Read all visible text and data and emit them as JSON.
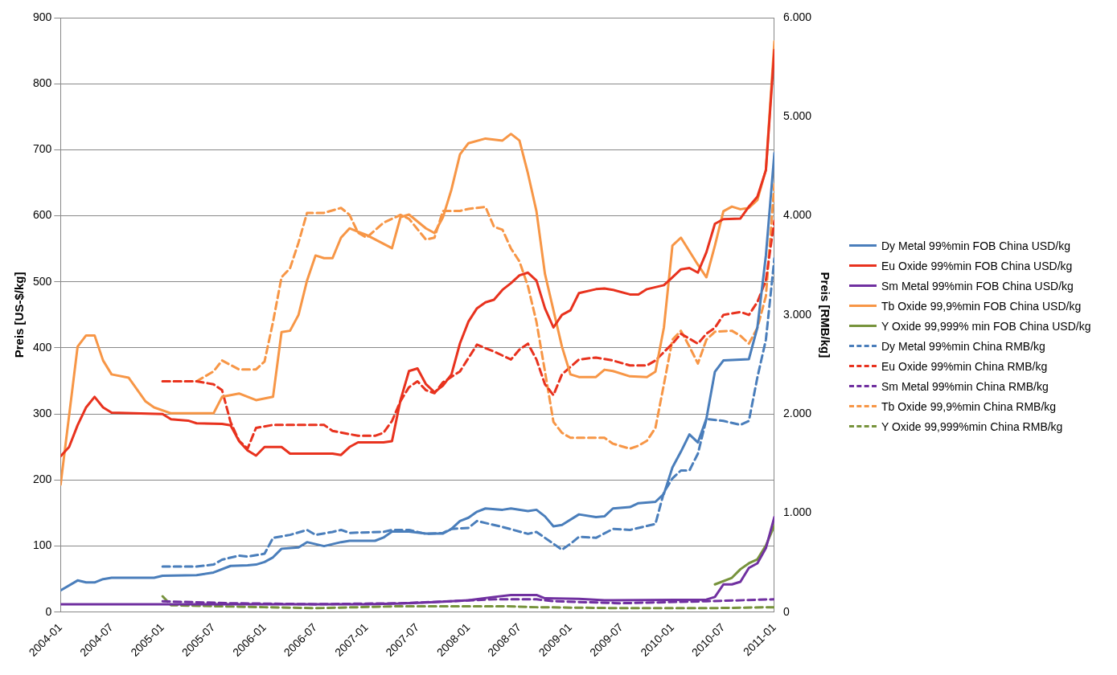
{
  "chart_data": {
    "type": "line",
    "ylabel": "Preis [US-$/kg]",
    "y2label": "Preis [RMB/kg]",
    "xlim": [
      "2004-01",
      "2011-01"
    ],
    "xticks": [
      "2004-01",
      "2004-07",
      "2005-01",
      "2005-07",
      "2006-01",
      "2006-07",
      "2007-01",
      "2007-07",
      "2008-01",
      "2008-07",
      "2009-01",
      "2009-07",
      "2010-01",
      "2010-07",
      "2011-01"
    ],
    "ylim": [
      0,
      900
    ],
    "yticks": [
      0,
      100,
      200,
      300,
      400,
      500,
      600,
      700,
      800,
      900
    ],
    "y2lim": [
      0,
      6000
    ],
    "y2ticks": [
      0,
      {
        "value": 1000,
        "label": "1.000"
      },
      {
        "value": 2000,
        "label": "2.000"
      },
      {
        "value": 3000,
        "label": "3.000"
      },
      {
        "value": 4000,
        "label": "4.000"
      },
      {
        "value": 5000,
        "label": "5.000"
      },
      {
        "value": 6000,
        "label": "6.000"
      }
    ],
    "grid": "y",
    "legend": "right",
    "series": [
      {
        "name": "Dy Metal 99%min FOB China USD/kg",
        "color": "#4a7ebb",
        "line_style": "solid",
        "x": [
          "2004-01",
          "2004-03",
          "2004-04",
          "2004-05",
          "2004-06",
          "2004-07",
          "2004-12",
          "2005-01",
          "2005-05",
          "2005-07",
          "2005-09",
          "2005-11",
          "2005-12",
          "2006-01",
          "2006-02",
          "2006-03",
          "2006-05",
          "2006-06",
          "2006-08",
          "2006-10",
          "2006-11",
          "2007-02",
          "2007-03",
          "2007-04",
          "2007-06",
          "2007-08",
          "2007-10",
          "2007-11",
          "2007-12",
          "2008-01",
          "2008-02",
          "2008-03",
          "2008-05",
          "2008-06",
          "2008-08",
          "2008-09",
          "2008-10",
          "2008-11",
          "2008-12",
          "2009-02",
          "2009-04",
          "2009-05",
          "2009-06",
          "2009-08",
          "2009-09",
          "2009-11",
          "2009-12",
          "2010-01",
          "2010-02",
          "2010-03",
          "2010-04",
          "2010-05",
          "2010-06",
          "2010-07",
          "2010-10",
          "2010-11",
          "2010-12",
          "2011-01"
        ],
        "values": [
          33,
          48,
          45,
          45,
          50,
          52,
          52,
          55,
          56,
          60,
          70,
          71,
          72,
          76,
          83,
          96,
          98,
          106,
          100,
          106,
          108,
          108,
          113,
          122,
          122,
          119,
          119,
          126,
          138,
          143,
          152,
          157,
          155,
          157,
          153,
          155,
          145,
          130,
          132,
          148,
          144,
          145,
          157,
          159,
          165,
          167,
          179,
          219,
          243,
          269,
          257,
          293,
          364,
          381,
          383,
          431,
          540,
          695
        ]
      },
      {
        "name": "Eu Oxide 99%min FOB China USD/kg",
        "color": "#e8321e",
        "line_style": "solid",
        "x": [
          "2004-01",
          "2004-02",
          "2004-03",
          "2004-04",
          "2004-05",
          "2004-06",
          "2004-07",
          "2005-01",
          "2005-02",
          "2005-04",
          "2005-05",
          "2005-08",
          "2005-09",
          "2005-10",
          "2005-11",
          "2005-12",
          "2006-01",
          "2006-03",
          "2006-04",
          "2006-09",
          "2006-10",
          "2006-11",
          "2006-12",
          "2007-03",
          "2007-04",
          "2007-05",
          "2007-06",
          "2007-07",
          "2007-08",
          "2007-09",
          "2007-10",
          "2007-11",
          "2007-12",
          "2008-01",
          "2008-02",
          "2008-03",
          "2008-04",
          "2008-05",
          "2008-06",
          "2008-07",
          "2008-08",
          "2008-09",
          "2008-10",
          "2008-11",
          "2008-12",
          "2009-01",
          "2009-02",
          "2009-04",
          "2009-05",
          "2009-06",
          "2009-08",
          "2009-09",
          "2009-10",
          "2009-12",
          "2010-01",
          "2010-02",
          "2010-03",
          "2010-04",
          "2010-05",
          "2010-06",
          "2010-07",
          "2010-09",
          "2010-10",
          "2010-11",
          "2010-12",
          "2011-01"
        ],
        "values": [
          236,
          250,
          283,
          310,
          326,
          310,
          302,
          300,
          292,
          290,
          286,
          285,
          283,
          259,
          245,
          237,
          250,
          250,
          240,
          240,
          238,
          250,
          257,
          257,
          259,
          321,
          365,
          369,
          345,
          333,
          343,
          360,
          407,
          440,
          460,
          469,
          473,
          488,
          498,
          510,
          514,
          502,
          460,
          431,
          450,
          457,
          483,
          489,
          490,
          488,
          481,
          481,
          489,
          495,
          507,
          519,
          521,
          514,
          545,
          588,
          595,
          596,
          614,
          629,
          669,
          851
        ]
      },
      {
        "name": "Sm Metal 99%min FOB China USD/kg",
        "color": "#7030a0",
        "line_style": "solid",
        "x": [
          "2004-01",
          "2007-01",
          "2007-05",
          "2007-10",
          "2008-01",
          "2008-04",
          "2008-06",
          "2008-09",
          "2008-10",
          "2009-02",
          "2009-05",
          "2010-05",
          "2010-06",
          "2010-07",
          "2010-08",
          "2010-09",
          "2010-10",
          "2010-11",
          "2010-12",
          "2011-01"
        ],
        "values": [
          12,
          12,
          13,
          16,
          18,
          23,
          26,
          26,
          21,
          20,
          18,
          19,
          23,
          42,
          42,
          46,
          67,
          74,
          97,
          144
        ]
      },
      {
        "name": "Tb Oxide 99,9%min FOB China USD/kg",
        "color": "#f79646",
        "line_style": "solid",
        "x": [
          "2004-01",
          "2004-03",
          "2004-04",
          "2004-05",
          "2004-06",
          "2004-07",
          "2004-09",
          "2004-11",
          "2004-12",
          "2005-02",
          "2005-07",
          "2005-08",
          "2005-10",
          "2005-12",
          "2006-02",
          "2006-03",
          "2006-04",
          "2006-05",
          "2006-06",
          "2006-07",
          "2006-08",
          "2006-09",
          "2006-10",
          "2006-11",
          "2006-12",
          "2007-01",
          "2007-04",
          "2007-05",
          "2007-06",
          "2007-08",
          "2007-09",
          "2007-10",
          "2007-11",
          "2007-12",
          "2008-01",
          "2008-03",
          "2008-05",
          "2008-06",
          "2008-07",
          "2008-08",
          "2008-09",
          "2008-10",
          "2008-12",
          "2009-01",
          "2009-02",
          "2009-04",
          "2009-05",
          "2009-06",
          "2009-08",
          "2009-10",
          "2009-11",
          "2009-12",
          "2010-01",
          "2010-02",
          "2010-04",
          "2010-05",
          "2010-06",
          "2010-07",
          "2010-08",
          "2010-09",
          "2010-10",
          "2010-11",
          "2010-12",
          "2011-01"
        ],
        "values": [
          193,
          402,
          419,
          419,
          381,
          360,
          355,
          319,
          310,
          301,
          301,
          326,
          331,
          321,
          326,
          424,
          426,
          450,
          502,
          540,
          536,
          536,
          567,
          581,
          576,
          571,
          551,
          598,
          602,
          581,
          574,
          598,
          640,
          693,
          710,
          717,
          714,
          724,
          714,
          664,
          607,
          512,
          402,
          360,
          356,
          356,
          367,
          365,
          357,
          356,
          364,
          431,
          555,
          567,
          526,
          507,
          555,
          607,
          614,
          610,
          612,
          624,
          670,
          864
        ]
      },
      {
        "name": "Y Oxide 99,999% min FOB China USD/kg",
        "color": "#77933c",
        "line_style": "solid",
        "x": [
          "2010-06",
          "2010-08",
          "2010-09",
          "2010-10",
          "2010-11",
          "2010-12",
          "2011-01"
        ],
        "values": [
          42,
          52,
          65,
          74,
          80,
          101,
          131
        ]
      },
      {
        "name": "Dy Metal 99%min China RMB/kg",
        "color": "#4a7ebb",
        "line_style": "dashed",
        "axis": "y2",
        "x": [
          "2005-01",
          "2005-05",
          "2005-07",
          "2005-08",
          "2005-10",
          "2005-11",
          "2006-01",
          "2006-02",
          "2006-04",
          "2006-06",
          "2006-07",
          "2006-09",
          "2006-10",
          "2006-11",
          "2007-03",
          "2007-04",
          "2007-06",
          "2007-08",
          "2007-10",
          "2007-11",
          "2008-01",
          "2008-02",
          "2008-05",
          "2008-08",
          "2008-09",
          "2008-10",
          "2008-12",
          "2009-01",
          "2009-02",
          "2009-04",
          "2009-06",
          "2009-08",
          "2009-10",
          "2009-11",
          "2009-12",
          "2010-01",
          "2010-02",
          "2010-03",
          "2010-04",
          "2010-05",
          "2010-07",
          "2010-08",
          "2010-09",
          "2010-10",
          "2010-11",
          "2010-12",
          "2011-01"
        ],
        "values": [
          460,
          460,
          480,
          530,
          570,
          560,
          590,
          750,
          780,
          830,
          780,
          810,
          830,
          800,
          810,
          830,
          830,
          790,
          800,
          840,
          850,
          920,
          860,
          790,
          810,
          750,
          630,
          690,
          760,
          750,
          840,
          830,
          870,
          890,
          1210,
          1350,
          1430,
          1430,
          1600,
          1950,
          1930,
          1910,
          1890,
          1930,
          2370,
          2750,
          3570
        ]
      },
      {
        "name": "Eu Oxide 99%min China RMB/kg",
        "color": "#e8321e",
        "line_style": "dashed",
        "axis": "y2",
        "x": [
          "2005-01",
          "2005-05",
          "2005-07",
          "2005-08",
          "2005-09",
          "2005-10",
          "2005-11",
          "2005-12",
          "2006-02",
          "2006-08",
          "2006-09",
          "2006-12",
          "2007-02",
          "2007-03",
          "2007-04",
          "2007-05",
          "2007-06",
          "2007-07",
          "2007-08",
          "2007-09",
          "2007-10",
          "2007-12",
          "2008-02",
          "2008-04",
          "2008-06",
          "2008-07",
          "2008-08",
          "2008-09",
          "2008-10",
          "2008-11",
          "2008-12",
          "2009-02",
          "2009-04",
          "2009-06",
          "2009-08",
          "2009-10",
          "2009-11",
          "2010-01",
          "2010-02",
          "2010-04",
          "2010-05",
          "2010-06",
          "2010-07",
          "2010-09",
          "2010-10",
          "2010-11",
          "2010-12",
          "2011-01"
        ],
        "values": [
          2330,
          2330,
          2300,
          2240,
          1920,
          1730,
          1650,
          1860,
          1890,
          1890,
          1830,
          1780,
          1780,
          1810,
          1930,
          2130,
          2270,
          2330,
          2240,
          2210,
          2320,
          2430,
          2700,
          2630,
          2550,
          2650,
          2710,
          2550,
          2300,
          2190,
          2400,
          2550,
          2570,
          2540,
          2490,
          2490,
          2540,
          2710,
          2810,
          2710,
          2810,
          2870,
          3000,
          3030,
          3000,
          3130,
          3350,
          3950
        ]
      },
      {
        "name": "Sm Metal 99%min China RMB/kg",
        "color": "#7030a0",
        "line_style": "dashed",
        "axis": "y2",
        "x": [
          "2005-01",
          "2005-09",
          "2006-07",
          "2007-05",
          "2007-11",
          "2008-04",
          "2008-09",
          "2008-11",
          "2009-03",
          "2009-07",
          "2010-05",
          "2011-01"
        ],
        "values": [
          110,
          90,
          80,
          90,
          110,
          130,
          130,
          110,
          100,
          90,
          110,
          130
        ]
      },
      {
        "name": "Tb Oxide 99,9%min China RMB/kg",
        "color": "#f79646",
        "line_style": "dashed",
        "axis": "y2",
        "x": [
          "2005-01",
          "2005-05",
          "2005-07",
          "2005-08",
          "2005-10",
          "2005-12",
          "2006-01",
          "2006-02",
          "2006-03",
          "2006-04",
          "2006-05",
          "2006-06",
          "2006-08",
          "2006-10",
          "2006-11",
          "2006-12",
          "2007-01",
          "2007-03",
          "2007-05",
          "2007-06",
          "2007-08",
          "2007-09",
          "2007-10",
          "2007-12",
          "2008-01",
          "2008-03",
          "2008-04",
          "2008-05",
          "2008-06",
          "2008-07",
          "2008-08",
          "2008-09",
          "2008-10",
          "2008-11",
          "2008-12",
          "2009-01",
          "2009-05",
          "2009-06",
          "2009-08",
          "2009-09",
          "2009-10",
          "2009-11",
          "2009-12",
          "2010-01",
          "2010-02",
          "2010-03",
          "2010-04",
          "2010-05",
          "2010-06",
          "2010-08",
          "2010-09",
          "2010-10",
          "2010-11",
          "2010-12",
          "2011-01"
        ],
        "values": [
          2330,
          2330,
          2430,
          2540,
          2450,
          2450,
          2530,
          2930,
          3380,
          3470,
          3730,
          4030,
          4030,
          4080,
          4010,
          3830,
          3780,
          3930,
          4010,
          3970,
          3760,
          3780,
          4050,
          4050,
          4070,
          4090,
          3890,
          3860,
          3670,
          3540,
          3290,
          2930,
          2430,
          1920,
          1810,
          1760,
          1760,
          1700,
          1650,
          1680,
          1730,
          1860,
          2300,
          2750,
          2840,
          2680,
          2510,
          2750,
          2830,
          2840,
          2790,
          2710,
          2870,
          3190,
          4320
        ]
      },
      {
        "name": "Y Oxide 99,999%min China RMB/kg",
        "color": "#77933c",
        "line_style": "dashed",
        "axis": "y2",
        "x": [
          "2005-01",
          "2005-02",
          "2005-07",
          "2006-01",
          "2006-07",
          "2007-05",
          "2007-12",
          "2008-05",
          "2008-09",
          "2009-07",
          "2010-05",
          "2011-01"
        ],
        "values": [
          160,
          70,
          60,
          50,
          40,
          60,
          60,
          60,
          50,
          40,
          40,
          50
        ]
      }
    ]
  }
}
